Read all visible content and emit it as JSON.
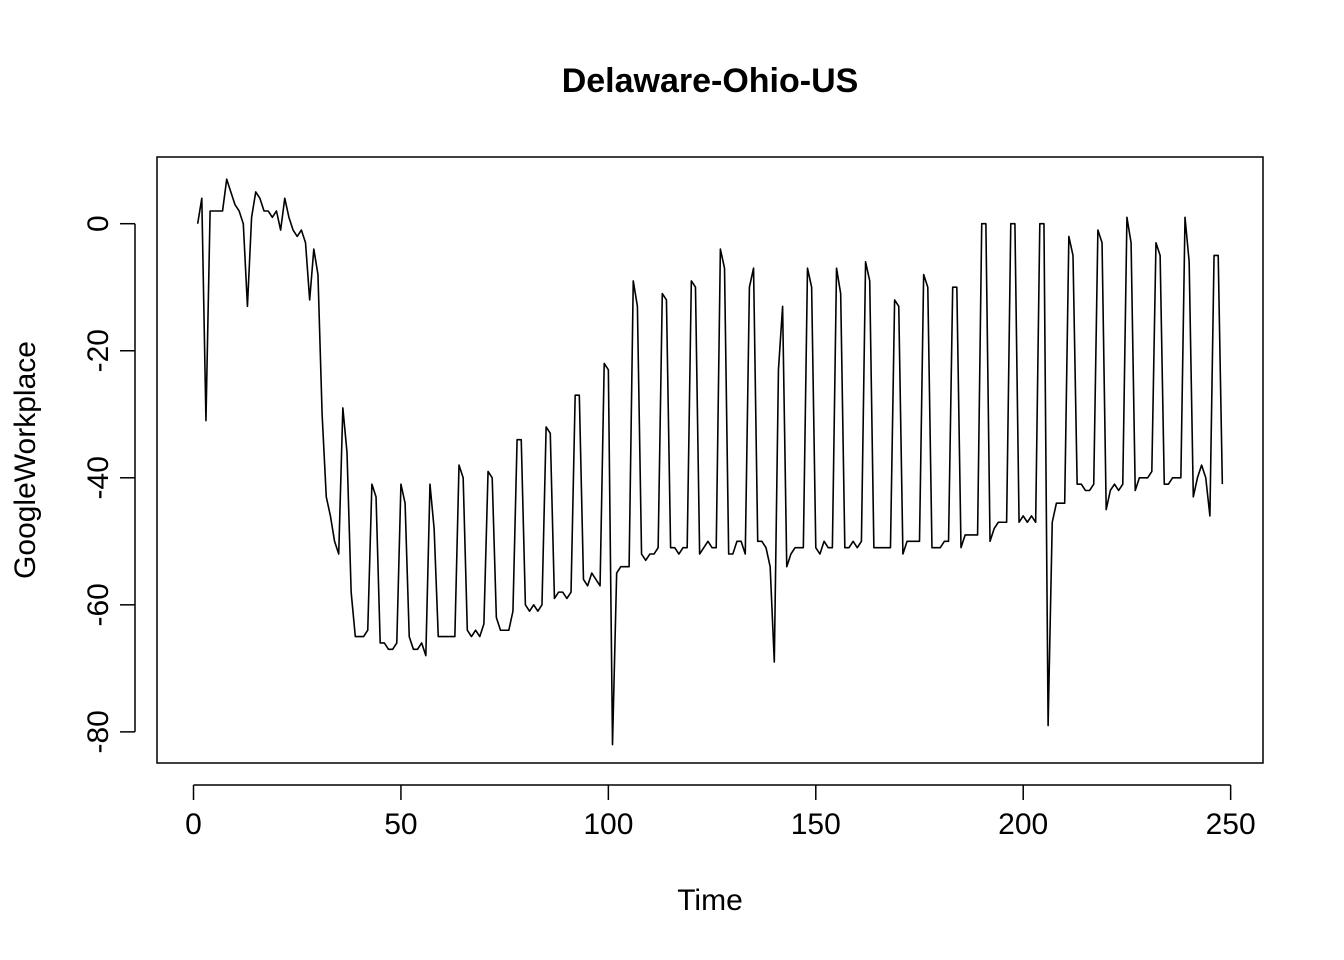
{
  "chart_data": {
    "type": "line",
    "title": "Delaware-Ohio-US",
    "xlabel": "Time",
    "ylabel": "GoogleWorkplace",
    "xlim": [
      -8.8,
      257.8
    ],
    "ylim": [
      -84.9,
      10.5
    ],
    "xticks": [
      0,
      50,
      100,
      150,
      200,
      250
    ],
    "yticks": [
      0,
      -20,
      -40,
      -60,
      -80
    ],
    "xtick_labels": [
      "0",
      "50",
      "100",
      "150",
      "200",
      "250"
    ],
    "ytick_labels": [
      "0",
      "-20",
      "-40",
      "-60",
      "-80"
    ],
    "grid": false,
    "series": [
      {
        "color": "#000000",
        "x": [
          1,
          2,
          3,
          4,
          5,
          6,
          7,
          8,
          9,
          10,
          11,
          12,
          13,
          14,
          15,
          16,
          17,
          18,
          19,
          20,
          21,
          22,
          23,
          24,
          25,
          26,
          27,
          28,
          29,
          30,
          31,
          32,
          33,
          34,
          35,
          36,
          37,
          38,
          39,
          40,
          41,
          42,
          43,
          44,
          45,
          46,
          47,
          48,
          49,
          50,
          51,
          52,
          53,
          54,
          55,
          56,
          57,
          58,
          59,
          60,
          61,
          62,
          63,
          64,
          65,
          66,
          67,
          68,
          69,
          70,
          71,
          72,
          73,
          74,
          75,
          76,
          77,
          78,
          79,
          80,
          81,
          82,
          83,
          84,
          85,
          86,
          87,
          88,
          89,
          90,
          91,
          92,
          93,
          94,
          95,
          96,
          97,
          98,
          99,
          100,
          101,
          102,
          103,
          104,
          105,
          106,
          107,
          108,
          109,
          110,
          111,
          112,
          113,
          114,
          115,
          116,
          117,
          118,
          119,
          120,
          121,
          122,
          123,
          124,
          125,
          126,
          127,
          128,
          129,
          130,
          131,
          132,
          133,
          134,
          135,
          136,
          137,
          138,
          139,
          140,
          141,
          142,
          143,
          144,
          145,
          146,
          147,
          148,
          149,
          150,
          151,
          152,
          153,
          154,
          155,
          156,
          157,
          158,
          159,
          160,
          161,
          162,
          163,
          164,
          165,
          166,
          167,
          168,
          169,
          170,
          171,
          172,
          173,
          174,
          175,
          176,
          177,
          178,
          179,
          180,
          181,
          182,
          183,
          184,
          185,
          186,
          187,
          188,
          189,
          190,
          191,
          192,
          193,
          194,
          195,
          196,
          197,
          198,
          199,
          200,
          201,
          202,
          203,
          204,
          205,
          206,
          207,
          208,
          209,
          210,
          211,
          212,
          213,
          214,
          215,
          216,
          217,
          218,
          219,
          220,
          221,
          222,
          223,
          224,
          225,
          226,
          227,
          228,
          229,
          230,
          231,
          232,
          233,
          234,
          235,
          236,
          237,
          238,
          239,
          240,
          241,
          242,
          243,
          244,
          245,
          246,
          247,
          248
        ],
        "values": [
          0,
          4,
          -31,
          2,
          2,
          2,
          2,
          7,
          5,
          3,
          2,
          0,
          -13,
          1,
          5,
          4,
          2,
          2,
          1,
          2,
          -1,
          4,
          1,
          -1,
          -2,
          -1,
          -3,
          -12,
          -4,
          -8,
          -30,
          -43,
          -46,
          -50,
          -52,
          -29,
          -36,
          -58,
          -65,
          -65,
          -65,
          -64,
          -41,
          -43,
          -66,
          -66,
          -67,
          -67,
          -66,
          -41,
          -44,
          -65,
          -67,
          -67,
          -66,
          -68,
          -41,
          -48,
          -65,
          -65,
          -65,
          -65,
          -65,
          -38,
          -40,
          -64,
          -65,
          -64,
          -65,
          -63,
          -39,
          -40,
          -62,
          -64,
          -64,
          -64,
          -61,
          -34,
          -34,
          -60,
          -61,
          -60,
          -61,
          -60,
          -32,
          -33,
          -59,
          -58,
          -58,
          -59,
          -58,
          -27,
          -27,
          -56,
          -57,
          -55,
          -56,
          -57,
          -22,
          -23,
          -82,
          -55,
          -54,
          -54,
          -54,
          -9,
          -13,
          -52,
          -53,
          -52,
          -52,
          -51,
          -11,
          -12,
          -51,
          -51,
          -52,
          -51,
          -51,
          -9,
          -10,
          -52,
          -51,
          -50,
          -51,
          -51,
          -4,
          -7,
          -52,
          -52,
          -50,
          -50,
          -52,
          -10,
          -7,
          -50,
          -50,
          -51,
          -54,
          -69,
          -23,
          -13,
          -54,
          -52,
          -51,
          -51,
          -51,
          -7,
          -10,
          -51,
          -52,
          -50,
          -51,
          -51,
          -7,
          -11,
          -51,
          -51,
          -50,
          -51,
          -50,
          -6,
          -9,
          -51,
          -51,
          -51,
          -51,
          -51,
          -12,
          -13,
          -52,
          -50,
          -50,
          -50,
          -50,
          -8,
          -10,
          -51,
          -51,
          -51,
          -50,
          -50,
          -10,
          -10,
          -51,
          -49,
          -49,
          -49,
          -49,
          0,
          0,
          -50,
          -48,
          -47,
          -47,
          -47,
          0,
          0,
          -47,
          -46,
          -47,
          -46,
          -47,
          0,
          0,
          -79,
          -47,
          -44,
          -44,
          -44,
          -2,
          -5,
          -41,
          -41,
          -42,
          -42,
          -41,
          -1,
          -3,
          -45,
          -42,
          -41,
          -42,
          -41,
          1,
          -3,
          -42,
          -40,
          -40,
          -40,
          -39,
          -3,
          -5,
          -41,
          -41,
          -40,
          -40,
          -40,
          1,
          -6,
          -43,
          -40,
          -38,
          -40,
          -46,
          -5,
          -5,
          -41
        ]
      }
    ]
  }
}
